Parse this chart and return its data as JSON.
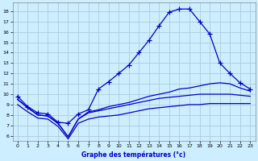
{
  "xlabel": "Graphe des températures (°c)",
  "bg_color": "#cceeff",
  "grid_color": "#aaccdd",
  "line_color": "#0000cc",
  "x_ticks": [
    0,
    1,
    2,
    3,
    4,
    5,
    6,
    7,
    8,
    9,
    10,
    11,
    12,
    13,
    14,
    15,
    16,
    17,
    18,
    19,
    20,
    21,
    22,
    23
  ],
  "y_ticks": [
    6,
    7,
    8,
    9,
    10,
    11,
    12,
    13,
    14,
    15,
    16,
    17,
    18
  ],
  "ylim": [
    5.5,
    18.8
  ],
  "xlim": [
    -0.5,
    23.5
  ],
  "line_main_x": [
    0,
    1,
    2,
    3,
    4,
    5,
    6,
    7,
    8,
    9,
    10,
    11,
    12,
    13,
    14,
    15,
    16,
    17,
    18,
    19,
    20,
    21,
    22,
    23
  ],
  "line_main_y": [
    9.8,
    8.8,
    8.2,
    8.1,
    7.3,
    7.2,
    8.1,
    8.5,
    10.5,
    11.2,
    12.0,
    12.8,
    14.0,
    15.2,
    16.6,
    17.9,
    18.2,
    18.2,
    17.0,
    15.8,
    13.0,
    12.0,
    11.1,
    10.5
  ],
  "line2_x": [
    0,
    1,
    2,
    3,
    4,
    5,
    6,
    7,
    8,
    9,
    10,
    11,
    12,
    13,
    14,
    15,
    16,
    17,
    18,
    19,
    20,
    21,
    22,
    23
  ],
  "line2_y": [
    9.5,
    8.7,
    8.0,
    7.9,
    7.2,
    5.9,
    7.6,
    8.3,
    8.5,
    8.8,
    9.0,
    9.2,
    9.5,
    9.8,
    10.0,
    10.2,
    10.5,
    10.6,
    10.8,
    11.0,
    11.1,
    11.0,
    10.6,
    10.3
  ],
  "line3_x": [
    0,
    1,
    2,
    3,
    4,
    5,
    6,
    7,
    8,
    9,
    10,
    11,
    12,
    13,
    14,
    15,
    16,
    17,
    18,
    19,
    20,
    21,
    22,
    23
  ],
  "line3_y": [
    9.5,
    8.7,
    8.0,
    7.9,
    7.2,
    5.9,
    7.6,
    8.2,
    8.4,
    8.6,
    8.8,
    9.0,
    9.2,
    9.4,
    9.6,
    9.7,
    9.8,
    9.9,
    10.0,
    10.0,
    10.0,
    10.0,
    9.9,
    9.8
  ],
  "line4_x": [
    0,
    1,
    2,
    3,
    4,
    5,
    6,
    7,
    8,
    9,
    10,
    11,
    12,
    13,
    14,
    15,
    16,
    17,
    18,
    19,
    20,
    21,
    22,
    23
  ],
  "line4_y": [
    9.0,
    8.3,
    7.7,
    7.6,
    6.9,
    5.7,
    7.2,
    7.6,
    7.8,
    7.9,
    8.0,
    8.2,
    8.4,
    8.6,
    8.7,
    8.8,
    8.9,
    9.0,
    9.0,
    9.1,
    9.1,
    9.1,
    9.1,
    9.1
  ]
}
